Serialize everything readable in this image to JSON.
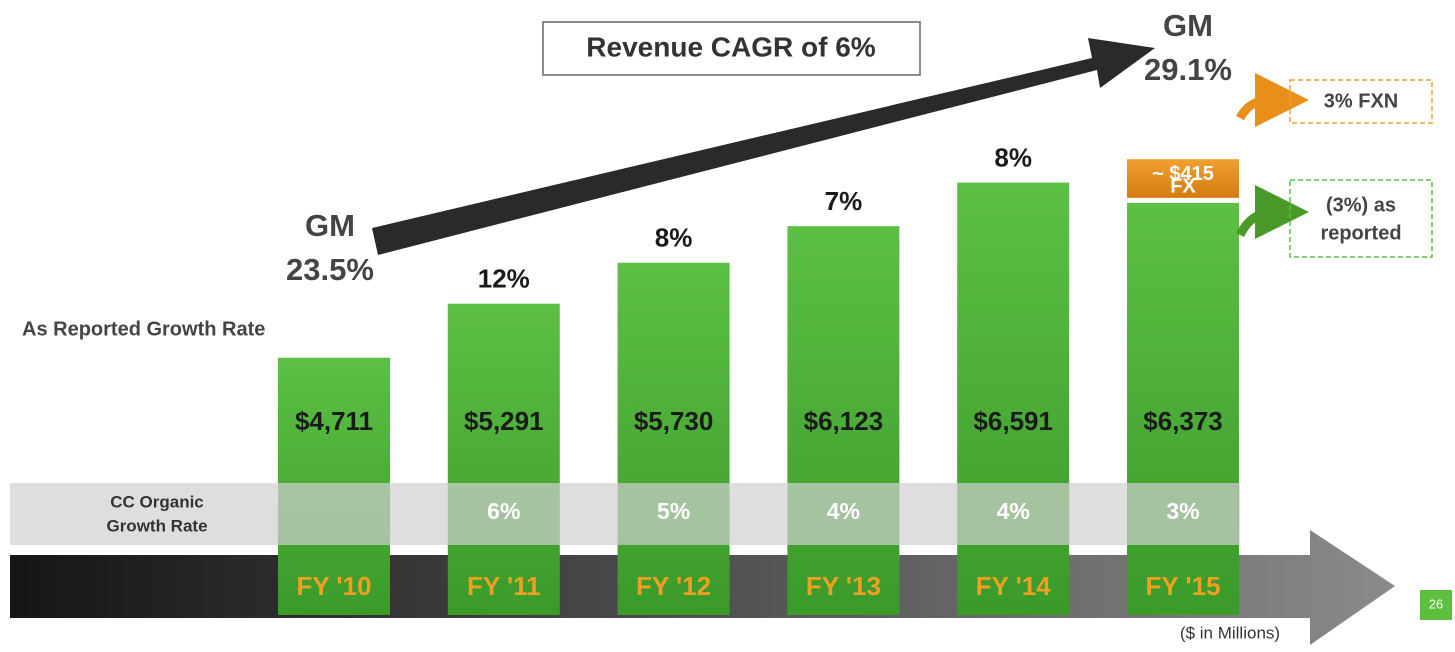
{
  "chart_data": {
    "type": "bar",
    "title": "Revenue CAGR of 6%",
    "categories": [
      "FY '10",
      "FY '11",
      "FY '12",
      "FY '13",
      "FY '14",
      "FY '15"
    ],
    "values": [
      4711,
      5291,
      5730,
      6123,
      6591,
      6373
    ],
    "value_labels": [
      "$4,711",
      "$5,291",
      "$5,730",
      "$6,123",
      "$6,591",
      "$6,373"
    ],
    "color": "#4cb038",
    "ylim": [
      1950,
      8550
    ],
    "fx": {
      "value": 415,
      "label_lines": [
        "~ $415",
        "FX"
      ],
      "color": "#e8901a"
    },
    "reported_growth": {
      "label": "As Reported Growth Rate",
      "labels": [
        null,
        "12%",
        "8%",
        "7%",
        "8%",
        null
      ]
    },
    "cc_growth": {
      "label_lines": [
        "CC Organic",
        "Growth Rate"
      ],
      "labels": [
        null,
        "6%",
        "5%",
        "4%",
        "4%",
        "3%"
      ]
    },
    "gm_start": {
      "label": "GM",
      "value_label": "23.5%"
    },
    "gm_end": {
      "label": "GM",
      "value_label": "29.1%"
    },
    "callouts": [
      {
        "lines": [
          "3% FXN"
        ],
        "color": "#f0a030"
      },
      {
        "lines": [
          "(3%) as",
          "reported"
        ],
        "color": "#5cbf3e"
      }
    ],
    "note": "($ in Millions)",
    "page_number": "26"
  }
}
